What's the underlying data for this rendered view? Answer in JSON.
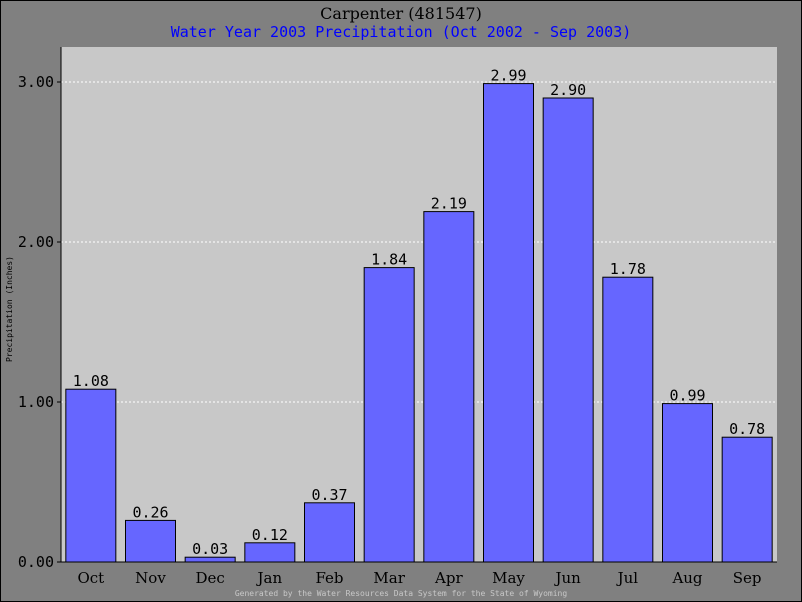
{
  "chart_data": {
    "type": "bar",
    "title": "Carpenter (481547)",
    "subtitle": "Water Year 2003 Precipitation (Oct 2002 - Sep 2003)",
    "xlabel": "",
    "ylabel": "Precipitation (Inches)",
    "categories": [
      "Oct",
      "Nov",
      "Dec",
      "Jan",
      "Feb",
      "Mar",
      "Apr",
      "May",
      "Jun",
      "Jul",
      "Aug",
      "Sep"
    ],
    "values": [
      1.08,
      0.26,
      0.03,
      0.12,
      0.37,
      1.84,
      2.19,
      2.99,
      2.9,
      1.78,
      0.99,
      0.78
    ],
    "data_labels": [
      "1.08",
      "0.26",
      "0.03",
      "0.12",
      "0.37",
      "1.84",
      "2.19",
      "2.99",
      "2.90",
      "1.78",
      "0.99",
      "0.78"
    ],
    "yticks": [
      "0.00",
      "1.00",
      "2.00",
      "3.00"
    ],
    "ylim": [
      0,
      3.0
    ],
    "grid": true,
    "legend": "none",
    "colors": {
      "bar_fill": "#6666ff",
      "plot_background": "#c8c8c8",
      "frame_background": "#808080",
      "subtitle": "#0000ff",
      "grid": "#ffffff"
    }
  },
  "footer": "Generated by the Water Resources Data System for the State of Wyoming"
}
